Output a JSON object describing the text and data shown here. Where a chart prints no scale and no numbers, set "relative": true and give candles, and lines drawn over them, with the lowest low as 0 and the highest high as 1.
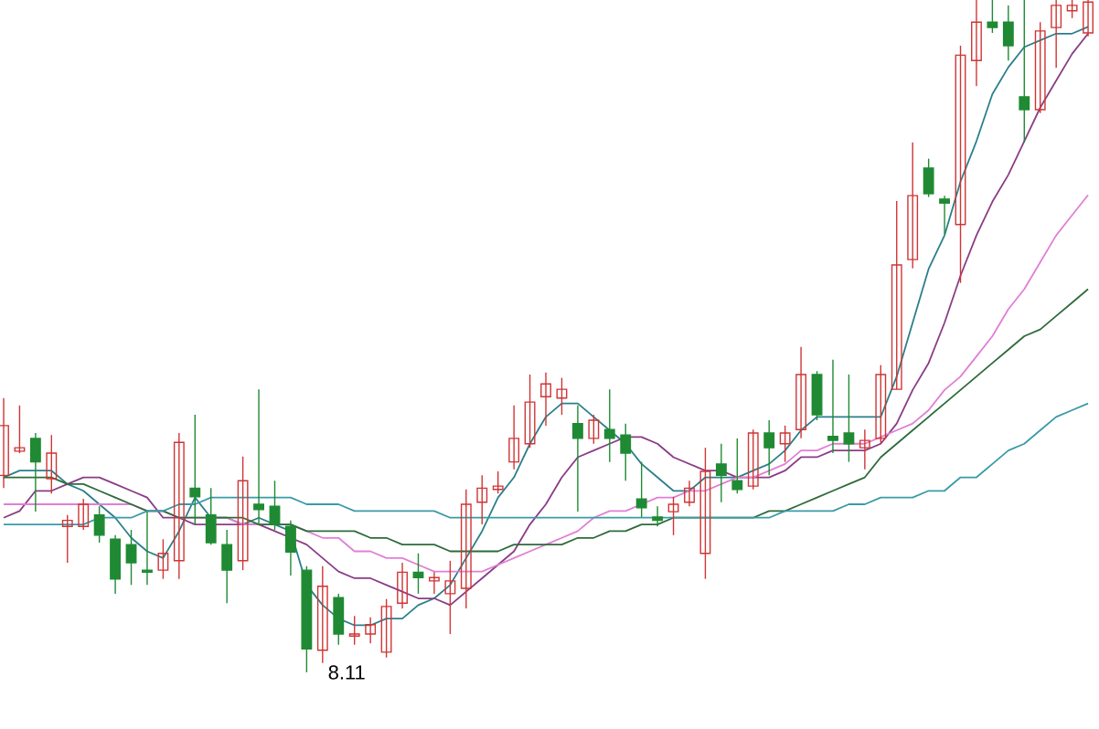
{
  "chart_data": {
    "type": "candlestick",
    "relative": true,
    "categories": [
      null,
      null,
      null,
      null,
      null,
      null,
      null,
      null,
      null,
      null,
      null,
      null,
      null,
      null,
      null,
      null,
      null,
      null,
      null,
      null,
      null,
      null,
      null,
      null,
      null,
      null,
      null,
      null,
      null,
      null,
      null,
      null,
      null,
      null,
      null,
      null,
      null,
      null,
      null,
      null,
      null,
      null,
      null,
      null,
      null,
      null,
      null,
      null,
      null,
      null,
      null,
      null,
      null,
      null,
      null,
      null,
      null,
      null,
      null,
      null,
      null,
      null,
      null,
      null,
      null,
      null,
      null,
      null,
      null
    ],
    "ohlc": [
      [
        0.293,
        0.408,
        0.274,
        0.367
      ],
      [
        0.329,
        0.397,
        0.326,
        0.334
      ],
      [
        0.348,
        0.356,
        0.239,
        0.313
      ],
      [
        0.288,
        0.353,
        0.266,
        0.326
      ],
      [
        0.217,
        0.234,
        0.163,
        0.226
      ],
      [
        0.217,
        0.258,
        0.212,
        0.25
      ],
      [
        0.234,
        0.247,
        0.193,
        0.204
      ],
      [
        0.198,
        0.204,
        0.117,
        0.139
      ],
      [
        0.19,
        0.212,
        0.13,
        0.163
      ],
      [
        0.152,
        0.239,
        0.13,
        0.149
      ],
      [
        0.152,
        0.198,
        0.139,
        0.177
      ],
      [
        0.166,
        0.356,
        0.139,
        0.342
      ],
      [
        0.274,
        0.383,
        0.22,
        0.261
      ],
      [
        0.234,
        0.274,
        0.19,
        0.193
      ],
      [
        0.19,
        0.212,
        0.103,
        0.152
      ],
      [
        0.166,
        0.321,
        0.152,
        0.285
      ],
      [
        0.25,
        0.421,
        0.22,
        0.242
      ],
      [
        0.247,
        0.285,
        0.212,
        0.22
      ],
      [
        0.217,
        0.226,
        0.144,
        0.179
      ],
      [
        0.152,
        0.158,
        0,
        0.035
      ],
      [
        0.033,
        0.158,
        0.014,
        0.128
      ],
      [
        0.111,
        0.117,
        0.041,
        0.057
      ],
      [
        0.054,
        0.084,
        0.041,
        0.057
      ],
      [
        0.057,
        0.082,
        0.043,
        0.071
      ],
      [
        0.03,
        0.109,
        0.022,
        0.098
      ],
      [
        0.103,
        0.163,
        0.095,
        0.149
      ],
      [
        0.149,
        0.177,
        0.117,
        0.141
      ],
      [
        0.136,
        0.149,
        0.117,
        0.141
      ],
      [
        0.117,
        0.166,
        0.057,
        0.136
      ],
      [
        0.125,
        0.272,
        0.095,
        0.25
      ],
      [
        0.253,
        0.293,
        0.22,
        0.274
      ],
      [
        0.272,
        0.299,
        0.266,
        0.277
      ],
      [
        0.313,
        0.397,
        0.302,
        0.348
      ],
      [
        0.34,
        0.443,
        0.334,
        0.402
      ],
      [
        0.41,
        0.446,
        0.367,
        0.429
      ],
      [
        0.408,
        0.438,
        0.383,
        0.421
      ],
      [
        0.37,
        0.397,
        0.239,
        0.348
      ],
      [
        0.348,
        0.383,
        0.34,
        0.375
      ],
      [
        0.361,
        0.421,
        0.313,
        0.348
      ],
      [
        0.353,
        0.37,
        0.285,
        0.326
      ],
      [
        0.258,
        0.313,
        0.231,
        0.245
      ],
      [
        0.231,
        0.247,
        0.217,
        0.226
      ],
      [
        0.239,
        0.261,
        0.204,
        0.25
      ],
      [
        0.253,
        0.285,
        0.247,
        0.274
      ],
      [
        0.177,
        0.334,
        0.139,
        0.299
      ],
      [
        0.31,
        0.34,
        0.253,
        0.293
      ],
      [
        0.285,
        0.348,
        0.266,
        0.272
      ],
      [
        0.277,
        0.361,
        0.272,
        0.356
      ],
      [
        0.356,
        0.375,
        0.293,
        0.334
      ],
      [
        0.34,
        0.367,
        0.313,
        0.356
      ],
      [
        0.361,
        0.484,
        0.348,
        0.443
      ],
      [
        0.443,
        0.448,
        0.375,
        0.383
      ],
      [
        0.351,
        0.465,
        0.326,
        0.345
      ],
      [
        0.356,
        0.443,
        0.313,
        0.34
      ],
      [
        0.334,
        0.361,
        0.302,
        0.345
      ],
      [
        0.348,
        0.457,
        0.34,
        0.443
      ],
      [
        0.421,
        0.701,
        0.421,
        0.606
      ],
      [
        0.614,
        0.788,
        0.601,
        0.709
      ],
      [
        0.75,
        0.764,
        0.707,
        0.712
      ],
      [
        0.704,
        0.709,
        0.652,
        0.698
      ],
      [
        0.666,
        0.932,
        0.579,
        0.918
      ],
      [
        0.91,
        1,
        0.872,
        0.967
      ],
      [
        0.967,
        1,
        0.951,
        0.959
      ],
      [
        0.967,
        0.992,
        0.91,
        0.932
      ],
      [
        0.856,
        1,
        0.788,
        0.837
      ],
      [
        0.837,
        0.967,
        0.832,
        0.954
      ],
      [
        0.959,
        1,
        0.899,
        0.992
      ],
      [
        0.984,
        1,
        0.973,
        0.992
      ],
      [
        0.951,
        1,
        0.946,
        0.997
      ]
    ],
    "series": [
      {
        "type": "line",
        "color": "#2b7f8c",
        "values": [
          0.29,
          0.3,
          0.3,
          0.3,
          0.28,
          0.27,
          0.25,
          0.23,
          0.2,
          0.18,
          0.17,
          0.21,
          0.26,
          0.23,
          0.23,
          0.22,
          0.23,
          0.22,
          0.21,
          0.13,
          0.1,
          0.08,
          0.07,
          0.07,
          0.08,
          0.08,
          0.1,
          0.11,
          0.13,
          0.17,
          0.21,
          0.26,
          0.29,
          0.34,
          0.38,
          0.4,
          0.4,
          0.38,
          0.36,
          0.34,
          0.31,
          0.29,
          0.27,
          0.27,
          0.29,
          0.29,
          0.29,
          0.3,
          0.31,
          0.33,
          0.36,
          0.38,
          0.38,
          0.38,
          0.38,
          0.38,
          0.44,
          0.52,
          0.6,
          0.65,
          0.73,
          0.79,
          0.86,
          0.9,
          0.93,
          0.94,
          0.95,
          0.95,
          0.96
        ]
      },
      {
        "type": "line",
        "color": "#8a3c86",
        "values": [
          0.23,
          0.24,
          0.27,
          0.27,
          0.28,
          0.29,
          0.29,
          0.28,
          0.27,
          0.26,
          0.23,
          0.23,
          0.22,
          0.22,
          0.22,
          0.22,
          0.22,
          0.21,
          0.2,
          0.19,
          0.17,
          0.15,
          0.14,
          0.14,
          0.13,
          0.12,
          0.11,
          0.11,
          0.1,
          0.12,
          0.14,
          0.16,
          0.18,
          0.22,
          0.25,
          0.29,
          0.32,
          0.33,
          0.34,
          0.35,
          0.35,
          0.34,
          0.32,
          0.31,
          0.3,
          0.3,
          0.29,
          0.29,
          0.29,
          0.3,
          0.32,
          0.32,
          0.33,
          0.33,
          0.33,
          0.34,
          0.37,
          0.42,
          0.46,
          0.52,
          0.59,
          0.65,
          0.7,
          0.74,
          0.79,
          0.84,
          0.88,
          0.92,
          0.95
        ]
      },
      {
        "type": "line",
        "color": "#e17fd4",
        "values": [
          0.25,
          0.25,
          0.25,
          0.25,
          0.25,
          0.25,
          0.25,
          0.25,
          0.25,
          0.24,
          0.24,
          0.23,
          0.23,
          0.23,
          0.23,
          0.22,
          0.22,
          0.22,
          0.22,
          0.21,
          0.2,
          0.2,
          0.18,
          0.18,
          0.17,
          0.17,
          0.16,
          0.15,
          0.15,
          0.15,
          0.15,
          0.16,
          0.17,
          0.18,
          0.19,
          0.2,
          0.21,
          0.23,
          0.24,
          0.24,
          0.25,
          0.26,
          0.26,
          0.27,
          0.27,
          0.28,
          0.29,
          0.29,
          0.3,
          0.31,
          0.33,
          0.33,
          0.34,
          0.34,
          0.34,
          0.35,
          0.36,
          0.37,
          0.39,
          0.42,
          0.44,
          0.47,
          0.5,
          0.54,
          0.57,
          0.61,
          0.65,
          0.68,
          0.71
        ]
      },
      {
        "type": "line",
        "color": "#2e6b3a",
        "values": [
          0.29,
          0.29,
          0.29,
          0.29,
          0.28,
          0.28,
          0.27,
          0.26,
          0.25,
          0.24,
          0.24,
          0.23,
          0.23,
          0.23,
          0.23,
          0.23,
          0.22,
          0.22,
          0.22,
          0.21,
          0.21,
          0.21,
          0.21,
          0.2,
          0.2,
          0.19,
          0.19,
          0.19,
          0.18,
          0.18,
          0.18,
          0.18,
          0.19,
          0.19,
          0.19,
          0.19,
          0.2,
          0.2,
          0.21,
          0.21,
          0.22,
          0.22,
          0.23,
          0.23,
          0.23,
          0.23,
          0.23,
          0.23,
          0.24,
          0.24,
          0.25,
          0.26,
          0.27,
          0.28,
          0.29,
          0.32,
          0.34,
          0.36,
          0.38,
          0.4,
          0.42,
          0.44,
          0.46,
          0.48,
          0.5,
          0.51,
          0.53,
          0.55,
          0.57
        ]
      },
      {
        "type": "line",
        "color": "#3a9aa8",
        "values": [
          0.22,
          0.22,
          0.22,
          0.22,
          0.22,
          0.22,
          0.23,
          0.23,
          0.23,
          0.24,
          0.24,
          0.25,
          0.25,
          0.26,
          0.26,
          0.26,
          0.26,
          0.26,
          0.26,
          0.25,
          0.25,
          0.25,
          0.24,
          0.24,
          0.24,
          0.24,
          0.24,
          0.24,
          0.23,
          0.23,
          0.23,
          0.23,
          0.23,
          0.23,
          0.23,
          0.23,
          0.23,
          0.23,
          0.23,
          0.23,
          0.23,
          0.23,
          0.23,
          0.23,
          0.23,
          0.23,
          0.23,
          0.23,
          0.23,
          0.24,
          0.24,
          0.24,
          0.24,
          0.25,
          0.25,
          0.26,
          0.26,
          0.26,
          0.27,
          0.27,
          0.29,
          0.29,
          0.31,
          0.33,
          0.34,
          0.36,
          0.38,
          0.39,
          0.4
        ]
      }
    ],
    "annotations": [
      "8.11"
    ]
  }
}
